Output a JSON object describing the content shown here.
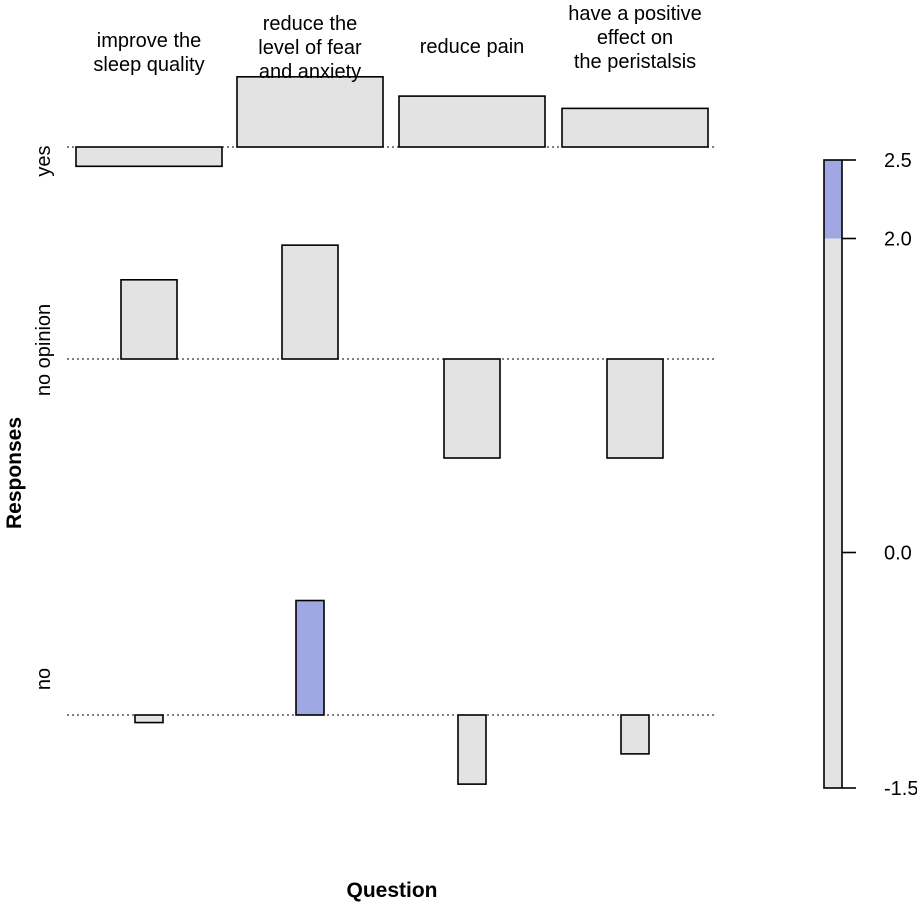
{
  "chart_data": {
    "type": "mosaic-residual",
    "xlabel": "Question",
    "ylabel": "Responses",
    "columns": [
      [
        "improve the",
        "sleep quality"
      ],
      [
        "reduce the",
        "level of fear",
        "and anxiety"
      ],
      [
        "reduce pain"
      ],
      [
        "have a positive",
        "effect on",
        "the peristalsis"
      ]
    ],
    "rows": [
      "yes",
      "no opinion",
      "no"
    ],
    "residuals": [
      [
        -0.55,
        2.0,
        1.45,
        1.1
      ],
      [
        1.6,
        2.3,
        -2.0,
        -2.0
      ],
      [
        -0.35,
        5.3,
        -3.2,
        -1.8
      ]
    ],
    "legend": {
      "ticks": [
        2.5,
        2.0,
        0.0,
        -1.5
      ],
      "tick_labels": [
        "2.5",
        "2.0",
        "0.0",
        "-1.5"
      ],
      "range": [
        -1.5,
        2.5
      ],
      "highlight_threshold": 2.0
    },
    "colors": {
      "neutral": "#e3e3e3",
      "highlight": "#a0a8e3",
      "border": "#000000"
    }
  }
}
